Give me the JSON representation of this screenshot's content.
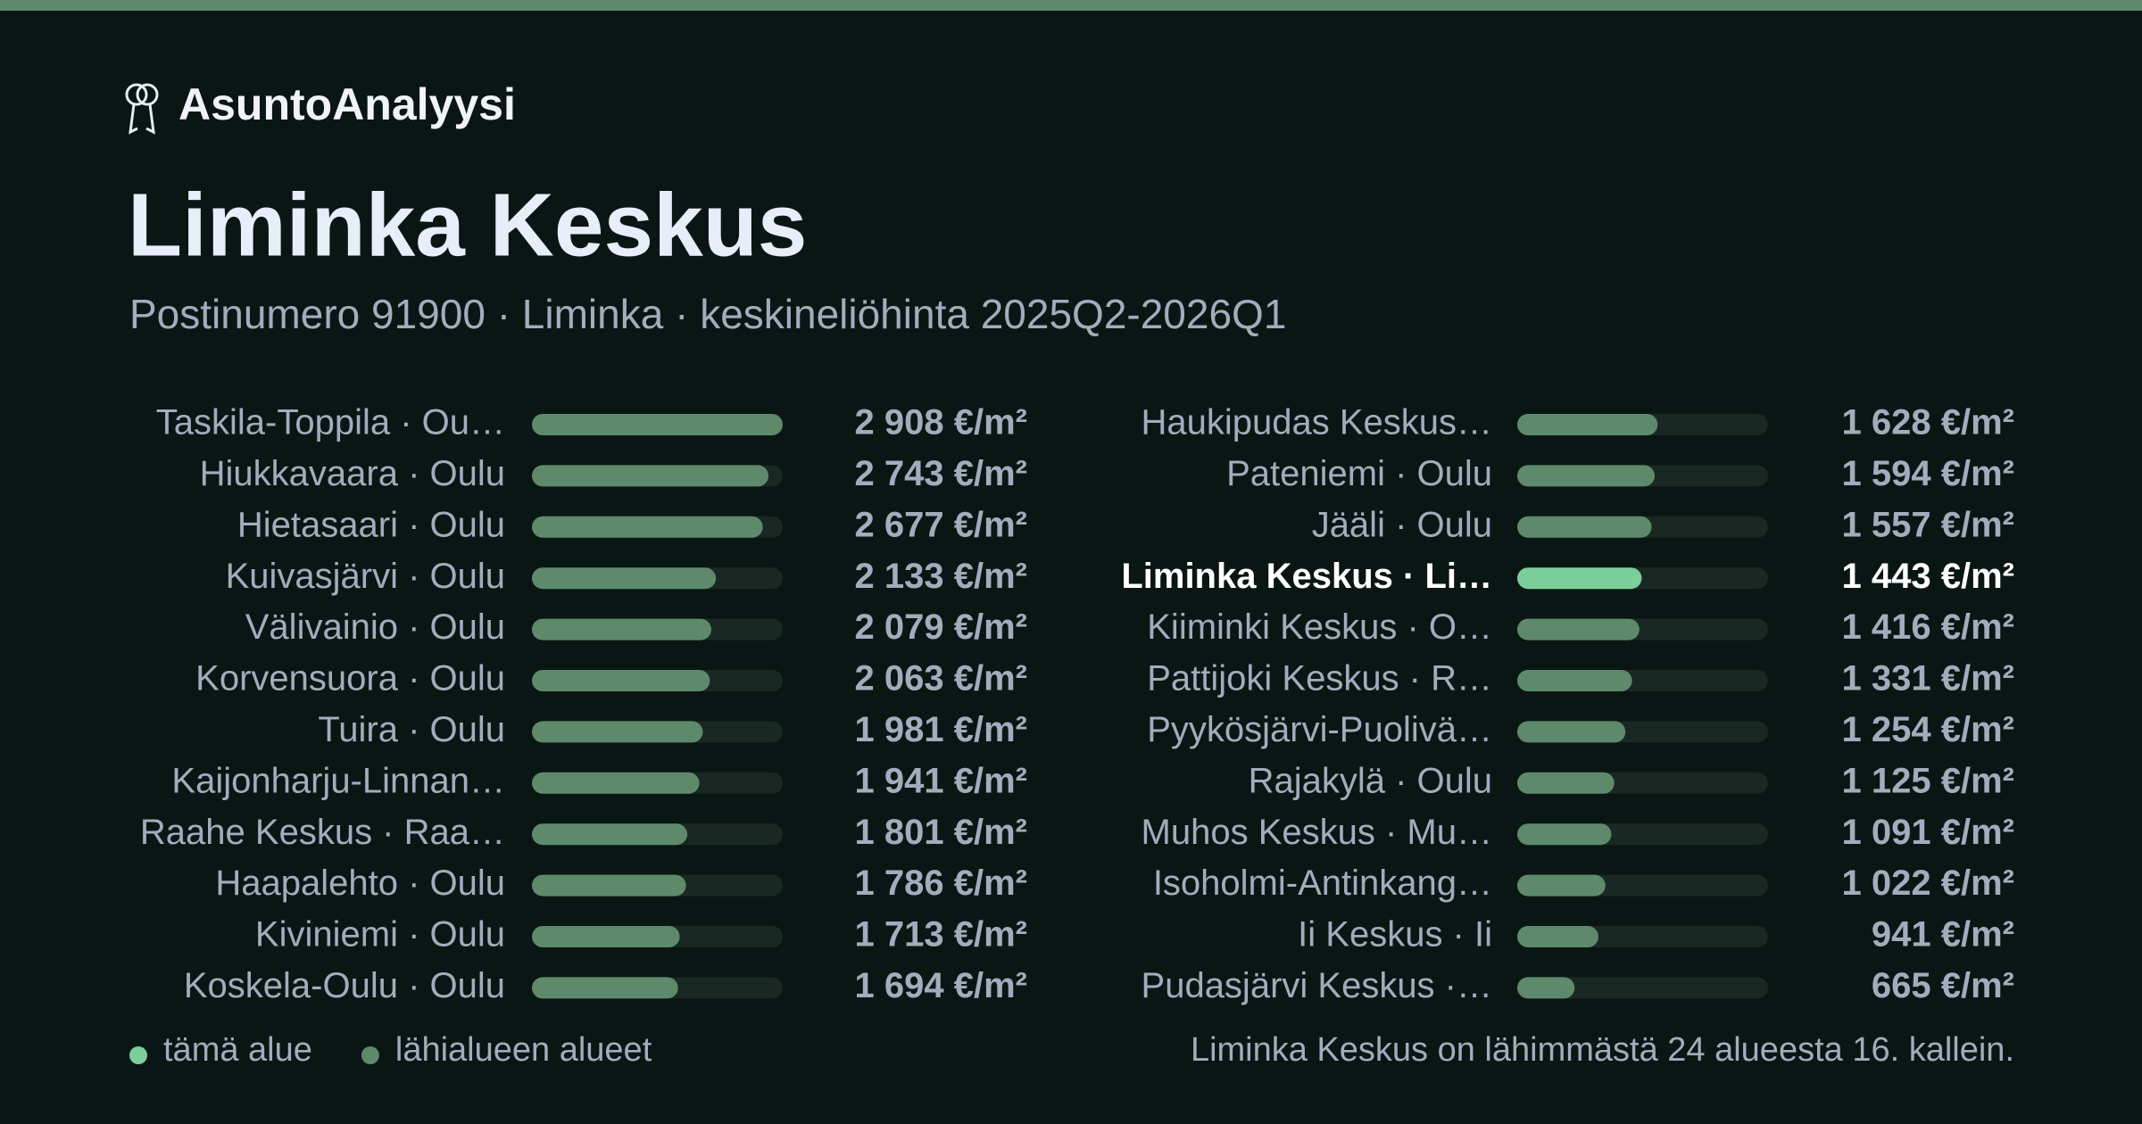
{
  "header": {
    "brand": "AsuntoAnalyysi",
    "title": "Liminka Keskus",
    "subtitle": "Postinumero 91900 · Liminka · keskineliöhinta 2025Q2-2026Q1"
  },
  "chart_data": {
    "type": "hbar",
    "categories": [
      "Taskila-Toppila · Ou…",
      "Hiukkavaara · Oulu",
      "Hietasaari · Oulu",
      "Kuivasjärvi · Oulu",
      "Välivainio · Oulu",
      "Korvensuora · Oulu",
      "Tuira · Oulu",
      "Kaijonharju-Linnan…",
      "Raahe Keskus · Raa…",
      "Haapalehto · Oulu",
      "Kiviniemi · Oulu",
      "Koskela-Oulu · Oulu",
      "Haukipudas Keskus…",
      "Pateniemi · Oulu",
      "Jääli · Oulu",
      "Liminka Keskus · Li…",
      "Kiiminki Keskus · O…",
      "Pattijoki Keskus · R…",
      "Pyykösjärvi-Puolivä…",
      "Rajakylä · Oulu",
      "Muhos Keskus · Mu…",
      "Isoholmi-Antinkang…",
      "Ii Keskus · Ii",
      "Pudasjärvi Keskus ·…"
    ],
    "values": [
      2908,
      2743,
      2677,
      2133,
      2079,
      2063,
      1981,
      1941,
      1801,
      1786,
      1713,
      1694,
      1628,
      1594,
      1557,
      1443,
      1416,
      1331,
      1254,
      1125,
      1091,
      1022,
      941,
      665
    ],
    "value_labels": [
      "2 908 €/m²",
      "2 743 €/m²",
      "2 677 €/m²",
      "2 133 €/m²",
      "2 079 €/m²",
      "2 063 €/m²",
      "1 981 €/m²",
      "1 941 €/m²",
      "1 801 €/m²",
      "1 786 €/m²",
      "1 713 €/m²",
      "1 694 €/m²",
      "1 628 €/m²",
      "1 594 €/m²",
      "1 557 €/m²",
      "1 443 €/m²",
      "1 416 €/m²",
      "1 331 €/m²",
      "1 254 €/m²",
      "1 125 €/m²",
      "1 091 €/m²",
      "1 022 €/m²",
      "941 €/m²",
      "665 €/m²"
    ],
    "colors": [
      "#5e8a6b",
      "#5e8a6b",
      "#5e8a6b",
      "#5e8a6b",
      "#5e8a6b",
      "#5e8a6b",
      "#5e8a6b",
      "#5e8a6b",
      "#5e8a6b",
      "#5e8a6b",
      "#5e8a6b",
      "#5e8a6b",
      "#5e8a6b",
      "#5e8a6b",
      "#5e8a6b",
      "#7ccf9b",
      "#5e8a6b",
      "#5e8a6b",
      "#5e8a6b",
      "#5e8a6b",
      "#5e8a6b",
      "#5e8a6b",
      "#5e8a6b",
      "#5e8a6b"
    ],
    "legend": [
      {
        "name": "tämä alue",
        "color": "#7ccf9b"
      },
      {
        "name": "lähialueen alueet",
        "color": "#5e8a6b"
      }
    ]
  },
  "footnote": "Liminka Keskus on lähimmästä 24 alueesta 16. kallein."
}
